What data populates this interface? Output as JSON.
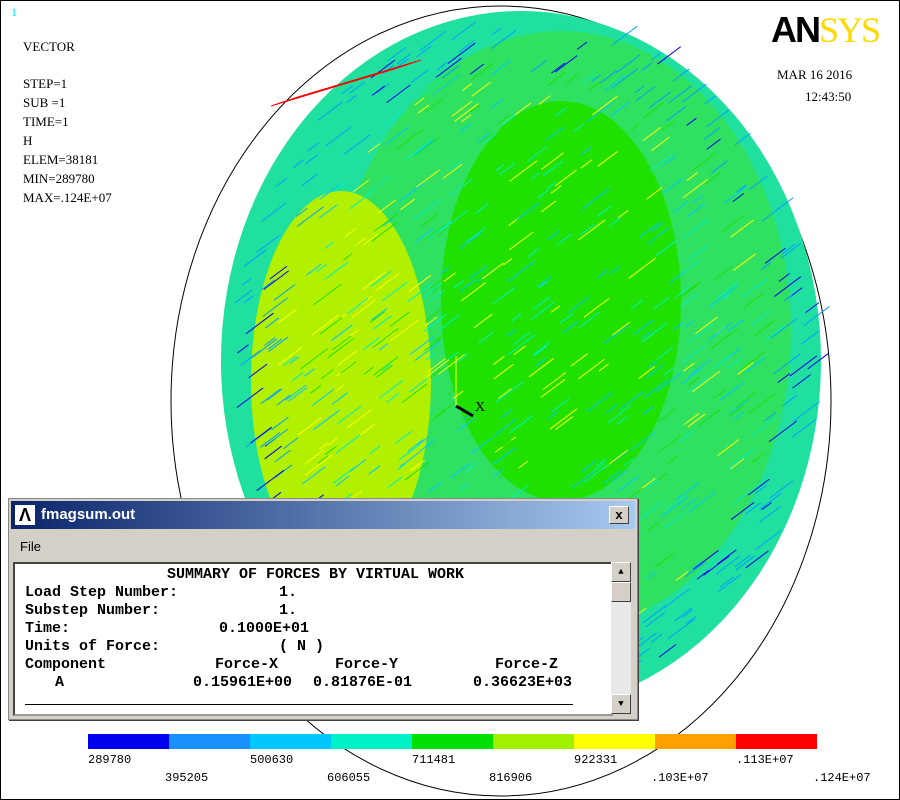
{
  "plot": {
    "window_number": "1",
    "mode": "VECTOR",
    "info": [
      "STEP=1",
      "SUB =1",
      "TIME=1",
      "H",
      "ELEM=38181",
      "MIN=289780",
      "MAX=.124E+07"
    ],
    "logo_main": "AN",
    "logo_accent": "SYS",
    "date": "MAR 16 2016",
    "time": "12:43:50",
    "axis_label": "X"
  },
  "dialog": {
    "title": "fmagsum.out",
    "close": "x",
    "menu": [
      "File"
    ],
    "heading": "SUMMARY OF FORCES BY VIRTUAL WORK",
    "fields": [
      [
        "Load Step Number:",
        "1."
      ],
      [
        "Substep Number:",
        "1."
      ],
      [
        "Time:",
        "0.1000E+01"
      ],
      [
        "Units of Force:",
        "( N )"
      ]
    ],
    "table_header": [
      "Component",
      "Force-X",
      "Force-Y",
      "Force-Z"
    ],
    "table_rows": [
      [
        "A",
        "0.15961E+00",
        "0.81876E-01",
        "0.36623E+03"
      ]
    ]
  },
  "legend": {
    "colors": [
      "#0000f0",
      "#1890ff",
      "#00c8ff",
      "#00f0c8",
      "#00e000",
      "#a0f000",
      "#ffff00",
      "#ffa000",
      "#ff0000"
    ],
    "labels": [
      "289780",
      "395205",
      "500630",
      "606055",
      "711481",
      "816906",
      "922331",
      ".103E+07",
      ".113E+07",
      ".124E+07"
    ]
  }
}
